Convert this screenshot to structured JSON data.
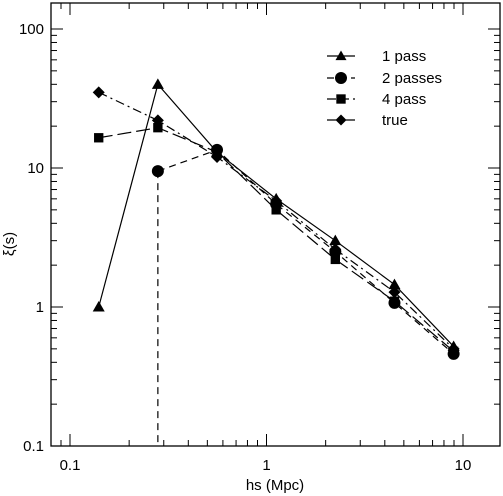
{
  "chart_data": {
    "type": "line",
    "xlabel": "hs (Mpc)",
    "ylabel": "ξ(s)",
    "xscale": "log",
    "yscale": "log",
    "xlim": [
      0.1,
      10
    ],
    "ylim": [
      0.1,
      100
    ],
    "x_ticks": [
      {
        "value": 0.1,
        "label": "0.1"
      },
      {
        "value": 1,
        "label": "1"
      },
      {
        "value": 10,
        "label": "10"
      }
    ],
    "y_ticks": [
      {
        "value": 0.1,
        "label": "0.1"
      },
      {
        "value": 1,
        "label": "1"
      },
      {
        "value": 10,
        "label": "10"
      },
      {
        "value": 100,
        "label": "100"
      }
    ],
    "grid": false,
    "legend_position": "top-right",
    "series": [
      {
        "name": "1 pass",
        "marker": "triangle",
        "dash": "solid",
        "x": [
          0.14,
          0.28,
          0.56,
          1.12,
          2.24,
          4.48,
          8.96
        ],
        "y": [
          1.0,
          40.0,
          13.0,
          6.0,
          3.0,
          1.45,
          0.52
        ]
      },
      {
        "name": "2 passes",
        "marker": "circle",
        "dash": "dashed",
        "x": [
          0.28,
          0.56,
          1.12,
          2.24,
          4.48,
          8.96
        ],
        "y": [
          9.5,
          13.5,
          5.5,
          2.5,
          1.07,
          0.46
        ],
        "drop_to_axis_at_x": 0.28
      },
      {
        "name": "4 pass",
        "marker": "square",
        "dash": "longdash",
        "x": [
          0.14,
          0.28,
          0.56,
          1.12,
          2.24,
          4.48,
          8.96
        ],
        "y": [
          16.5,
          19.5,
          13.0,
          5.0,
          2.2,
          1.1,
          0.48
        ]
      },
      {
        "name": "true",
        "marker": "diamond",
        "dash": "dashdot",
        "x": [
          0.14,
          0.28,
          0.56,
          1.12,
          2.24,
          4.48,
          8.96
        ],
        "y": [
          35.0,
          22.0,
          12.0,
          5.8,
          2.6,
          1.28,
          0.5
        ]
      }
    ]
  }
}
